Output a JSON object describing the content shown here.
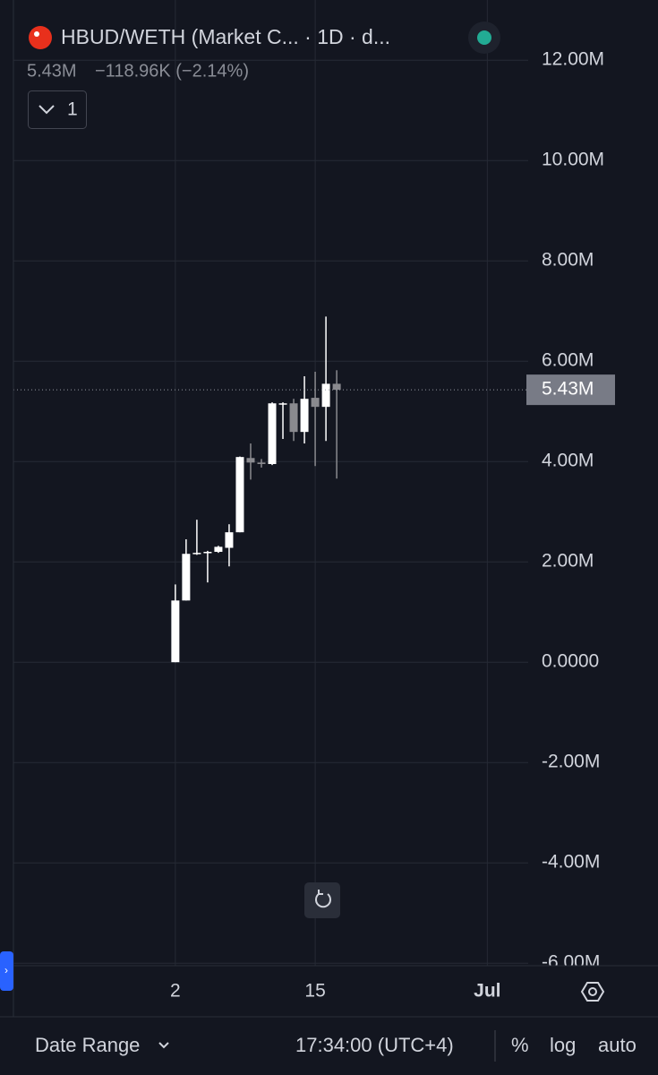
{
  "chart_data": {
    "type": "candlestick",
    "x": [
      2,
      3,
      4,
      5,
      6,
      7,
      8,
      9,
      10,
      11,
      12,
      13,
      14,
      15,
      16,
      17
    ],
    "open": [
      0,
      1230000,
      2160000,
      2180000,
      2200000,
      2280000,
      2590000,
      4070000,
      3980000,
      3950000,
      5140000,
      5160000,
      4590000,
      5270000,
      5090000,
      5550000
    ],
    "high": [
      1550000,
      2450000,
      2840000,
      2220000,
      2320000,
      2750000,
      4100000,
      4360000,
      4050000,
      5180000,
      5180000,
      5250000,
      5700000,
      5790000,
      6890000,
      5820000
    ],
    "low": [
      0,
      1230000,
      2140000,
      1590000,
      2180000,
      1910000,
      2590000,
      3640000,
      3880000,
      3930000,
      4450000,
      4410000,
      4360000,
      3910000,
      4410000,
      3660000
    ],
    "close": [
      1230000,
      2160000,
      2180000,
      2200000,
      2300000,
      2590000,
      4090000,
      3980000,
      3950000,
      5160000,
      5160000,
      4590000,
      5250000,
      5090000,
      5550000,
      5430000
    ],
    "up_color": "#ffffff",
    "down_color": "#8a8a8f",
    "xlim": [
      -14.3,
      34.8
    ],
    "xticks": [
      2,
      15,
      {
        "value": 31,
        "label": "Jul"
      }
    ],
    "ylim": [
      -6050000,
      13200000
    ],
    "yticks": [
      {
        "value": -6000000,
        "label": "-6.00M"
      },
      {
        "value": -4000000,
        "label": "-4.00M"
      },
      {
        "value": -2000000,
        "label": "-2.00M"
      },
      {
        "value": 0,
        "label": "0.0000"
      },
      {
        "value": 2000000,
        "label": "2.00M"
      },
      {
        "value": 4000000,
        "label": "4.00M"
      },
      {
        "value": 6000000,
        "label": "6.00M"
      },
      {
        "value": 8000000,
        "label": "8.00M"
      },
      {
        "value": 10000000,
        "label": "10.00M"
      },
      {
        "value": 12000000,
        "label": "12.00M"
      }
    ],
    "price_line": {
      "value": 5430000,
      "label": "5.43M"
    },
    "grid": true
  },
  "ui": {
    "title": "HBUD/WETH (Market C... · 1D · d...",
    "price": "5.43M",
    "change": "−118.96K (−2.14%)",
    "indicators": "1",
    "date_range": "Date Range",
    "time": "17:34:00 (UTC+4)",
    "percent": "%",
    "log": "log",
    "auto": "auto"
  }
}
